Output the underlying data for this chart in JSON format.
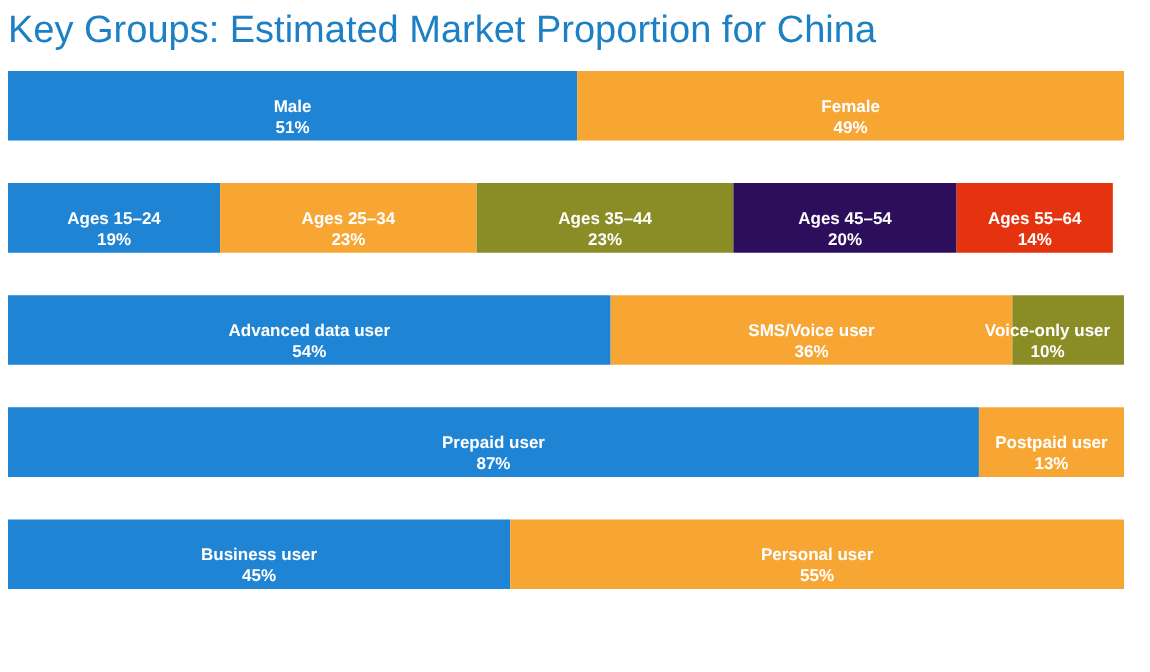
{
  "chart_data": {
    "type": "bar",
    "orientation": "horizontal",
    "stacked": true,
    "tick_labels": false,
    "title": "Key Groups: Estimated Market Proportion for China",
    "categories": [
      null,
      null,
      null,
      null,
      null
    ],
    "series": [
      {
        "color": "#1f84d4",
        "values": [
          51,
          19,
          54,
          87,
          45
        ],
        "value_labels": [
          "Male\n51%",
          "Ages 15–24\n19%",
          "Advanced data user\n54%",
          "Prepaid user\n87%",
          "Business user\n45%"
        ]
      },
      {
        "color": "#f7a634",
        "values": [
          49,
          23,
          36,
          13,
          55
        ],
        "value_labels": [
          "Female\n49%",
          "Ages 25–34\n23%",
          "SMS/Voice user\n36%",
          "Postpaid user\n13%",
          "Personal user\n55%"
        ]
      },
      {
        "color": "#8a8c25",
        "values": [
          null,
          23,
          10,
          null,
          null
        ],
        "value_labels": [
          null,
          "Ages 35–44\n23%",
          "Voice-only user\n10%",
          null,
          null
        ]
      },
      {
        "color": "#2d0e5c",
        "values": [
          null,
          20,
          null,
          null,
          null
        ],
        "value_labels": [
          null,
          "Ages 45–54\n20%",
          null,
          null,
          null
        ]
      },
      {
        "color": "#e5320f",
        "values": [
          null,
          14,
          null,
          null,
          null
        ],
        "value_labels": [
          null,
          "Ages 55–64\n14%",
          null,
          null,
          null
        ]
      }
    ]
  }
}
